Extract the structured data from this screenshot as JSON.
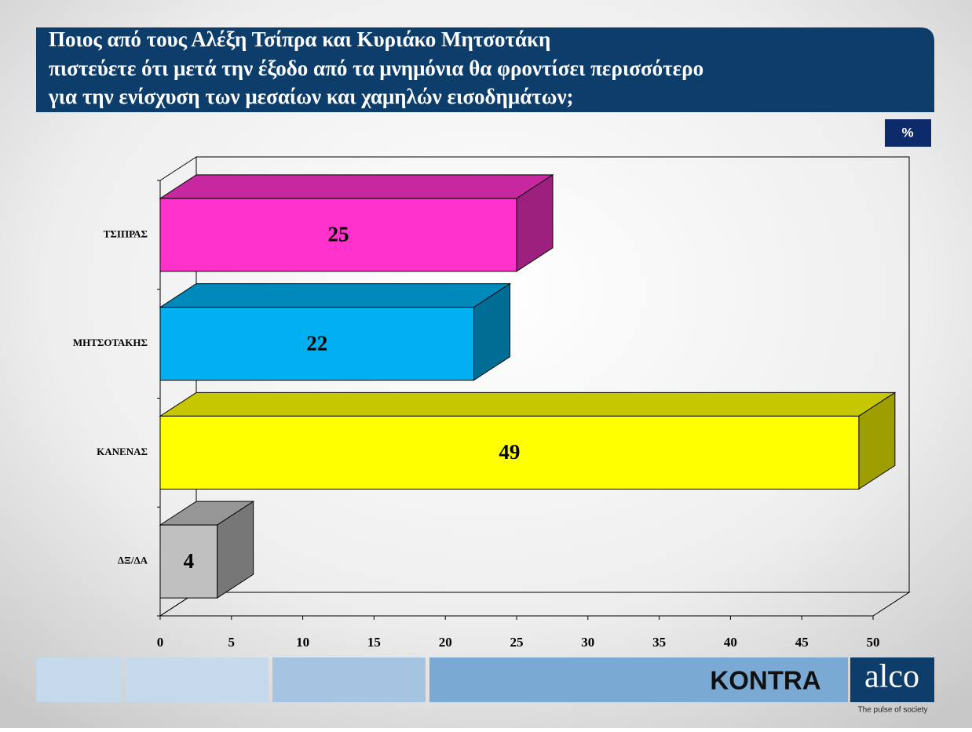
{
  "chart_data": {
    "type": "bar3d",
    "title": [
      "Ποιος από τους Αλέξη Τσίπρα και Κυριάκο Μητσοτάκη",
      "πιστεύετε ότι μετά την έξοδο από τα μνημόνια θα φροντίσει περισσότερο",
      "για την ενίσχυση των μεσαίων και χαμηλών εισοδημάτων;"
    ],
    "unit": "%",
    "categories": [
      "ΤΣΙΠΡΑΣ",
      "ΜΗΤΣΟΤΑΚΗΣ",
      "ΚΑΝΕΝΑΣ",
      "ΔΞ/ΔΑ"
    ],
    "values": [
      25,
      22,
      49,
      4
    ],
    "colors": [
      "#ff33cc",
      "#00b0f0",
      "#ffff00",
      "#c0c0c0"
    ],
    "xlim": [
      0,
      50
    ],
    "xticks": [
      0,
      5,
      10,
      15,
      20,
      25,
      30,
      35,
      40,
      45,
      50
    ]
  },
  "logos": {
    "kontra": "KONTRA",
    "alco": "alco",
    "tagline": "The pulse of society"
  }
}
